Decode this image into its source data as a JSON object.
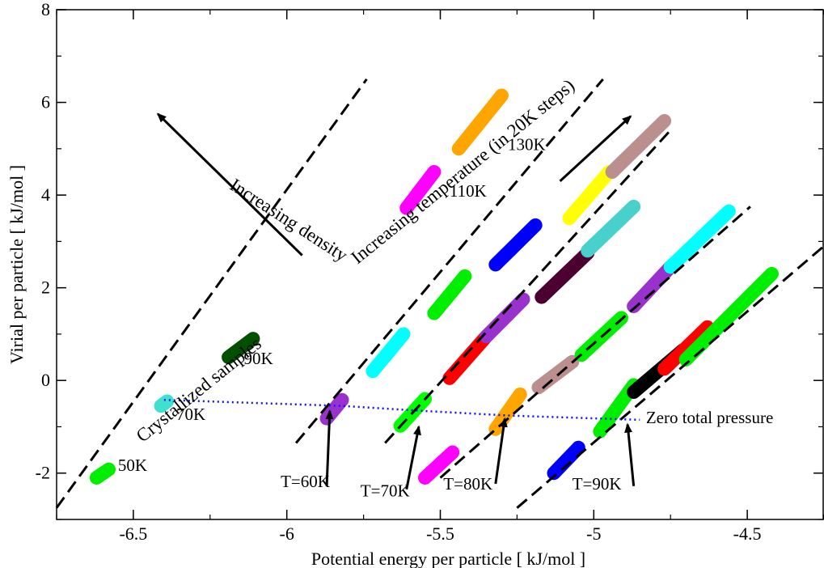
{
  "chart_data": {
    "type": "scatter",
    "title": "",
    "xlabel": "Potential energy per particle [ kJ/mol ]",
    "ylabel": "Virial per particle [ kJ/mol ]",
    "xlim": [
      -6.75,
      -4.25
    ],
    "ylim": [
      -3,
      8
    ],
    "x_ticks": [
      -6.5,
      -6,
      -5.5,
      -5,
      -4.5
    ],
    "x_tick_labels": [
      "-6.5",
      "-6",
      "-5.5",
      "-5",
      "-4.5"
    ],
    "y_ticks": [
      -2,
      0,
      2,
      4,
      6,
      8
    ],
    "y_tick_labels": [
      "-2",
      "0",
      "2",
      "4",
      "6",
      "8"
    ],
    "grid": false,
    "isomorph_lines": [
      {
        "x": [
          -6.75,
          -5.74
        ],
        "y": [
          -2.75,
          6.5
        ]
      },
      {
        "x": [
          -5.97,
          -4.97
        ],
        "y": [
          -1.35,
          6.5
        ]
      },
      {
        "x": [
          -5.68,
          -4.75
        ],
        "y": [
          -1.35,
          5.4
        ]
      },
      {
        "x": [
          -5.5,
          -4.49
        ],
        "y": [
          -2.1,
          3.75
        ]
      },
      {
        "x": [
          -5.25,
          -4.25
        ],
        "y": [
          -2.75,
          2.9
        ]
      }
    ],
    "zero_pressure_line": {
      "x": [
        -6.4,
        -5.82,
        -5.55,
        -5.27,
        -4.85
      ],
      "y": [
        -0.42,
        -0.55,
        -0.66,
        -0.76,
        -0.85
      ]
    },
    "series": [
      {
        "color": "#00ee00",
        "x": [
          -6.58,
          -6.62
        ],
        "y": [
          -1.92,
          -2.1
        ]
      },
      {
        "color": "#40e0d0",
        "x": [
          -6.39,
          -6.41
        ],
        "y": [
          -0.45,
          -0.55
        ]
      },
      {
        "color": "#005000",
        "x": [
          -6.11,
          -6.19
        ],
        "y": [
          0.9,
          0.5
        ]
      },
      {
        "color": "#ff00ff",
        "x": [
          -5.61,
          -5.52
        ],
        "y": [
          3.72,
          4.5
        ]
      },
      {
        "color": "#ffa500",
        "x": [
          -5.44,
          -5.3
        ],
        "y": [
          5.0,
          6.15
        ]
      },
      {
        "color": "#9932cc",
        "x": [
          -5.87,
          -5.82
        ],
        "y": [
          -0.82,
          -0.42
        ]
      },
      {
        "color": "#00ff00",
        "x": [
          -5.63,
          -5.55
        ],
        "y": [
          -0.98,
          -0.4
        ]
      },
      {
        "color": "#ff00ff",
        "x": [
          -5.55,
          -5.46
        ],
        "y": [
          -2.1,
          -1.55
        ]
      },
      {
        "color": "#ffa500",
        "x": [
          -5.32,
          -5.24
        ],
        "y": [
          -1.05,
          -0.3
        ]
      },
      {
        "color": "#0000ff",
        "x": [
          -5.13,
          -5.05
        ],
        "y": [
          -2.0,
          -1.45
        ]
      },
      {
        "color": "#00ee00",
        "x": [
          -4.98,
          -4.87
        ],
        "y": [
          -1.1,
          -0.1
        ]
      },
      {
        "color": "#00ffff",
        "x": [
          -5.72,
          -5.62
        ],
        "y": [
          0.2,
          1.0
        ]
      },
      {
        "color": "#00ee00",
        "x": [
          -5.52,
          -5.42
        ],
        "y": [
          1.45,
          2.25
        ]
      },
      {
        "color": "#0000ff",
        "x": [
          -5.32,
          -5.19
        ],
        "y": [
          2.5,
          3.35
        ]
      },
      {
        "color": "#ffff00",
        "x": [
          -5.08,
          -4.95
        ],
        "y": [
          3.5,
          4.5
        ]
      },
      {
        "color": "#bc8f8f",
        "x": [
          -4.94,
          -4.77
        ],
        "y": [
          4.5,
          5.6
        ]
      },
      {
        "color": "#ff0000",
        "x": [
          -5.47,
          -5.35
        ],
        "y": [
          0.05,
          0.95
        ]
      },
      {
        "color": "#9932cc",
        "x": [
          -5.35,
          -5.23
        ],
        "y": [
          0.95,
          1.75
        ]
      },
      {
        "color": "#4b0030",
        "x": [
          -5.17,
          -5.02
        ],
        "y": [
          1.8,
          2.75
        ]
      },
      {
        "color": "#48d1cc",
        "x": [
          -5.02,
          -4.87
        ],
        "y": [
          2.8,
          3.75
        ]
      },
      {
        "color": "#bc8f8f",
        "x": [
          -5.18,
          -5.07
        ],
        "y": [
          -0.15,
          0.4
        ]
      },
      {
        "color": "#00ee00",
        "x": [
          -5.04,
          -4.91
        ],
        "y": [
          0.55,
          1.35
        ]
      },
      {
        "color": "#9932cc",
        "x": [
          -4.87,
          -4.75
        ],
        "y": [
          1.6,
          2.45
        ]
      },
      {
        "color": "#00ffff",
        "x": [
          -4.75,
          -4.56
        ],
        "y": [
          2.45,
          3.65
        ]
      },
      {
        "color": "#000000",
        "x": [
          -4.87,
          -4.71
        ],
        "y": [
          -0.25,
          0.65
        ]
      },
      {
        "color": "#ff0000",
        "x": [
          -4.77,
          -4.63
        ],
        "y": [
          0.25,
          1.15
        ]
      },
      {
        "color": "#00ee00",
        "x": [
          -4.7,
          -4.42
        ],
        "y": [
          0.45,
          2.3
        ]
      }
    ],
    "annotations": [
      {
        "text": "50K",
        "x": -6.55,
        "y": -1.95
      },
      {
        "text": "70K",
        "x": -6.36,
        "y": -0.85
      },
      {
        "text": "90K",
        "x": -6.14,
        "y": 0.35
      },
      {
        "text": "110K",
        "x": -5.47,
        "y": 3.97
      },
      {
        "text": "130K",
        "x": -5.28,
        "y": 4.97
      },
      {
        "text": "T=60K",
        "x": -6.02,
        "y": -2.3
      },
      {
        "text": "T=70K",
        "x": -5.76,
        "y": -2.5
      },
      {
        "text": "T=80K",
        "x": -5.49,
        "y": -2.35
      },
      {
        "text": "T=90K",
        "x": -5.07,
        "y": -2.35
      },
      {
        "text": "Zero total pressure",
        "x": -4.83,
        "y": -0.92
      },
      {
        "text": "Crystallized samples",
        "x": -6.47,
        "y": -1.35
      },
      {
        "text": "Increasing density",
        "x": -6.19,
        "y": 4.15
      },
      {
        "text": "Increasing temperature (in 20K steps)",
        "x": -5.77,
        "y": 2.5
      }
    ]
  }
}
